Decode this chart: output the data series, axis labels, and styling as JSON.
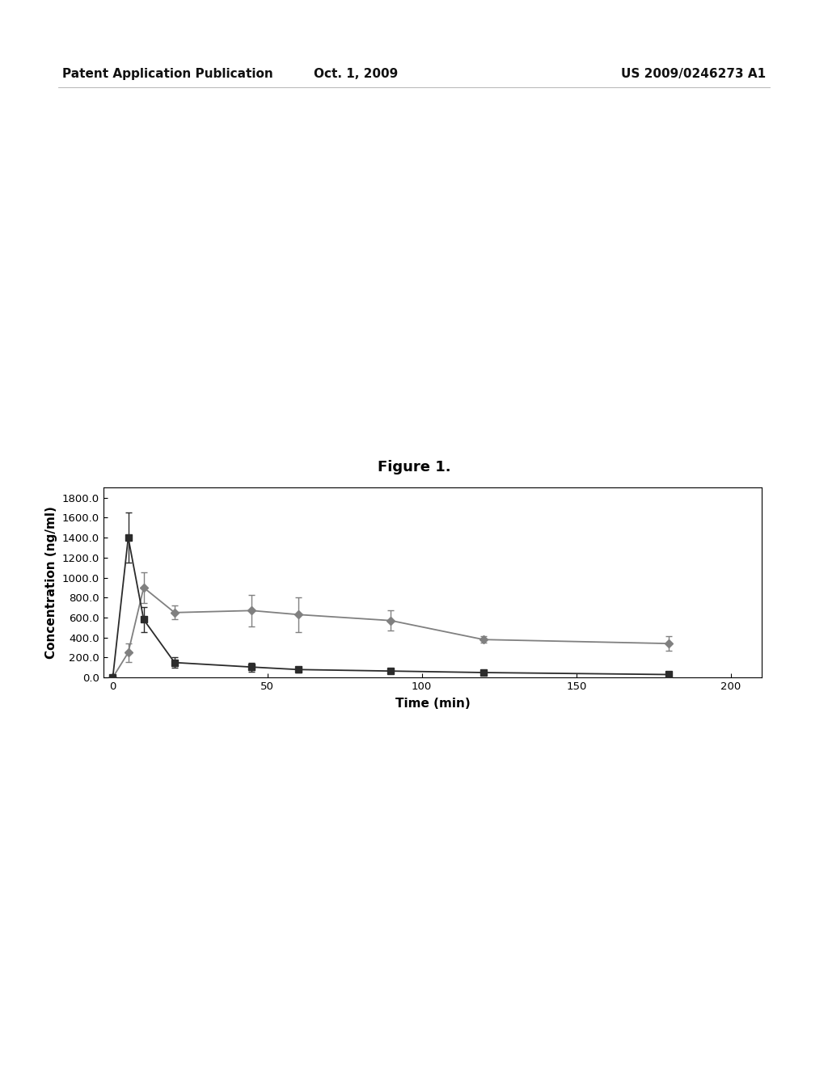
{
  "figure_title": "Figure 1.",
  "header_left": "Patent Application Publication",
  "header_center": "Oct. 1, 2009",
  "header_right": "US 2009/0246273 A1",
  "xlabel": "Time (min)",
  "ylabel": "Concentration (ng/ml)",
  "xlim": [
    -3,
    210
  ],
  "ylim": [
    0.0,
    1900.0
  ],
  "xticks": [
    0,
    50,
    100,
    150,
    200
  ],
  "xtick_labels": [
    "0",
    "50",
    "100",
    "150",
    "200"
  ],
  "yticks": [
    0.0,
    200.0,
    400.0,
    600.0,
    800.0,
    1000.0,
    1200.0,
    1400.0,
    1600.0,
    1800.0
  ],
  "ytick_labels": [
    "0.0",
    "200.0",
    "400.0",
    "600.0",
    "800.0",
    "1000.0",
    "1200.0",
    "1400.0",
    "1600.0",
    "1800.0"
  ],
  "series1": {
    "color": "#2b2b2b",
    "marker": "s",
    "x": [
      0,
      5,
      10,
      20,
      45,
      60,
      90,
      120,
      180
    ],
    "y": [
      0,
      1400,
      580,
      150,
      105,
      80,
      65,
      50,
      30
    ],
    "yerr": [
      0,
      250,
      125,
      55,
      45,
      30,
      20,
      22,
      16
    ]
  },
  "series2": {
    "color": "#808080",
    "marker": "D",
    "x": [
      0,
      5,
      10,
      20,
      45,
      60,
      90,
      120,
      180
    ],
    "y": [
      0,
      250,
      900,
      650,
      670,
      630,
      570,
      380,
      340
    ],
    "yerr": [
      0,
      95,
      155,
      70,
      155,
      175,
      100,
      32,
      72
    ]
  },
  "background_color": "#ffffff",
  "figsize": [
    10.24,
    13.2
  ],
  "dpi": 100,
  "header_fontsize": 11,
  "title_fontsize": 13,
  "axis_label_fontsize": 11,
  "tick_fontsize": 9.5
}
